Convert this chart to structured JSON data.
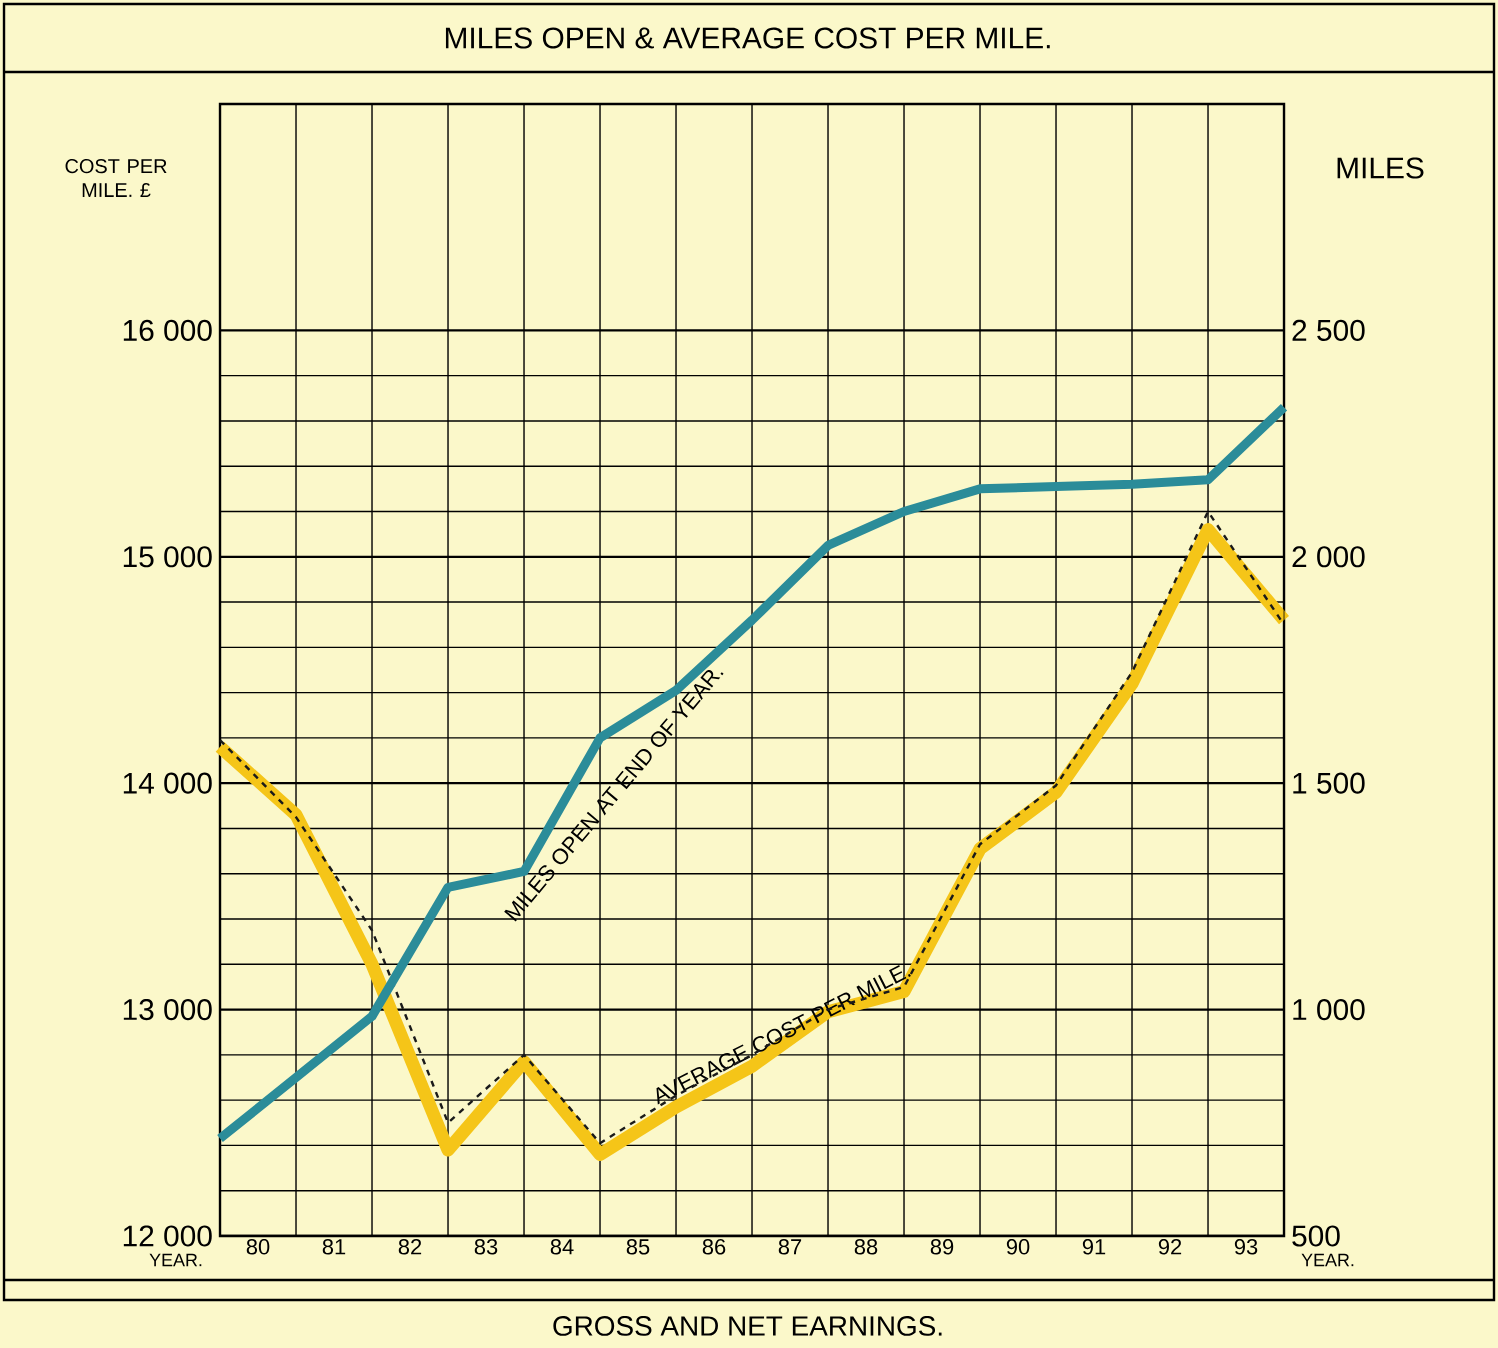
{
  "chart_data": {
    "type": "line",
    "title": "MILES OPEN & AVERAGE COST PER MILE.",
    "xlabel": "YEAR.",
    "ylabel": "COST PER MILE. £",
    "y2label": "MILES",
    "annotations": [
      "GROSS AND NET EARNINGS."
    ],
    "x": [
      79.5,
      80.5,
      81.5,
      82.5,
      83.5,
      84.5,
      85.5,
      86.5,
      87.5,
      88.5,
      89.5,
      90.5,
      91.5,
      92.5,
      93.5
    ],
    "series": [
      {
        "name": "MILES OPEN AT END OF YEAR.",
        "color": "#2b8c99",
        "axis": "y2",
        "values": [
          715,
          850,
          985,
          1270,
          1305,
          1600,
          1705,
          1860,
          2025,
          2100,
          2150,
          2155,
          2160,
          2170,
          2330
        ]
      },
      {
        "name": "AVERAGE COST PER MILE.",
        "color": "#f5c518",
        "values": [
          14160,
          13860,
          13200,
          12380,
          12770,
          12360,
          12570,
          12750,
          12990,
          13080,
          13710,
          13960,
          14440,
          15120,
          14720
        ]
      },
      {
        "color": "#1a1a1a",
        "line_style": "dashed",
        "values": [
          14190,
          13850,
          13350,
          12500,
          12800,
          12410,
          12620,
          12800,
          13000,
          13100,
          13730,
          13990,
          14490,
          15200,
          14700
        ]
      }
    ],
    "xlim": [
      79.5,
      93.5
    ],
    "xticks": [
      80,
      81,
      82,
      83,
      84,
      85,
      86,
      87,
      88,
      89,
      90,
      91,
      92,
      93
    ],
    "ylim": [
      12000,
      17000
    ],
    "yticks": [
      {
        "value": 12000,
        "label": "12 000"
      },
      {
        "value": 13000,
        "label": "13 000"
      },
      {
        "value": 14000,
        "label": "14 000"
      },
      {
        "value": 15000,
        "label": "15 000"
      },
      {
        "value": 16000,
        "label": "16 000"
      }
    ],
    "y2lim": [
      500,
      3000
    ],
    "y2ticks": [
      500,
      {
        "value": 1000,
        "label": "1 000"
      },
      {
        "value": 1500,
        "label": "1 500"
      },
      {
        "value": 2000,
        "label": "2 000"
      },
      {
        "value": 2500,
        "label": "2 500"
      }
    ],
    "grid": true,
    "line_style": "solid"
  }
}
